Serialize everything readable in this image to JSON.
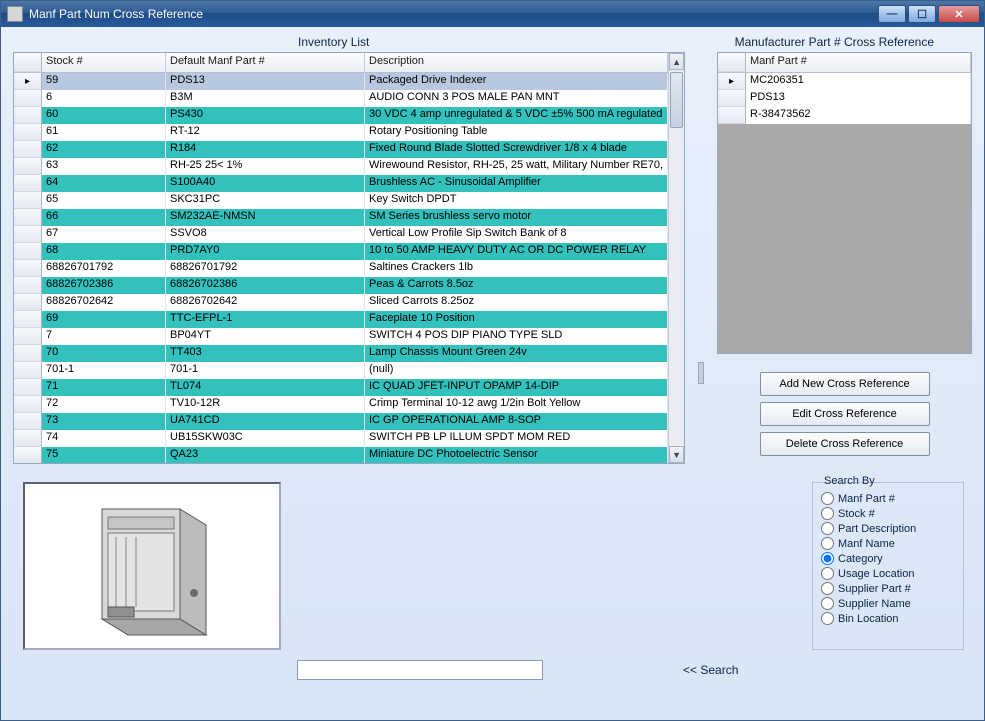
{
  "window": {
    "title": "Manf Part Num Cross Reference"
  },
  "labels": {
    "inventory_list": "Inventory List",
    "xref_title": "Manufacturer Part # Cross Reference",
    "search_label": "<< Search"
  },
  "colors": {
    "teal_row": "#32c1bd",
    "white_row": "#ffffff",
    "selected_row": "#b8c8e0",
    "header_bg_top": "#fdfdfd",
    "header_bg_bot": "#e9edf3",
    "titlebar_text": "#ffffff"
  },
  "inventory": {
    "columns": [
      "Stock #",
      "Default Manf Part #",
      "Description"
    ],
    "rows": [
      {
        "sel": true,
        "teal": false,
        "cells": [
          "59",
          "PDS13",
          "Packaged Drive Indexer"
        ]
      },
      {
        "teal": false,
        "cells": [
          "6",
          "B3M",
          "AUDIO CONN 3 POS MALE PAN MNT"
        ]
      },
      {
        "teal": true,
        "cells": [
          "60",
          "PS430",
          "30 VDC 4 amp unregulated & 5 VDC ±5% 500 mA regulated"
        ]
      },
      {
        "teal": false,
        "cells": [
          "61",
          "RT-12",
          "Rotary Positioning Table"
        ]
      },
      {
        "teal": true,
        "cells": [
          "62",
          "R184",
          "Fixed Round Blade Slotted Screwdriver 1/8 x 4 blade"
        ]
      },
      {
        "teal": false,
        "cells": [
          "63",
          "RH-25 25< 1%",
          "Wirewound Resistor, RH-25, 25 watt, Military Number RE70,"
        ]
      },
      {
        "teal": true,
        "cells": [
          "64",
          "S100A40",
          "Brushless AC - Sinusoidal Amplifier"
        ]
      },
      {
        "teal": false,
        "cells": [
          "65",
          "SKC31PC",
          "Key Switch DPDT"
        ]
      },
      {
        "teal": true,
        "cells": [
          "66",
          "SM232AE-NMSN",
          "SM Series brushless servo motor"
        ]
      },
      {
        "teal": false,
        "cells": [
          "67",
          "SSVO8",
          "Vertical Low Profile Sip Switch Bank of 8"
        ]
      },
      {
        "teal": true,
        "cells": [
          "68",
          "PRD7AY0",
          "10 to 50 AMP HEAVY DUTY AC OR DC POWER RELAY"
        ]
      },
      {
        "teal": false,
        "cells": [
          "68826701792",
          "68826701792",
          "Saltines Crackers 1lb"
        ]
      },
      {
        "teal": true,
        "cells": [
          "68826702386",
          "68826702386",
          "Peas & Carrots 8.5oz"
        ]
      },
      {
        "teal": false,
        "cells": [
          "68826702642",
          "68826702642",
          "Sliced Carrots 8.25oz"
        ]
      },
      {
        "teal": true,
        "cells": [
          "69",
          "TTC-EFPL-1",
          "Faceplate 10 Position"
        ]
      },
      {
        "teal": false,
        "cells": [
          "7",
          "BP04YT",
          "SWITCH 4 POS DIP PIANO TYPE SLD"
        ]
      },
      {
        "teal": true,
        "cells": [
          "70",
          "TT403",
          "Lamp Chassis Mount Green 24v"
        ]
      },
      {
        "teal": false,
        "cells": [
          "701-1",
          "701-1",
          "(null)"
        ]
      },
      {
        "teal": true,
        "cells": [
          "71",
          "TL074",
          "IC QUAD JFET-INPUT OPAMP 14-DIP"
        ]
      },
      {
        "teal": false,
        "cells": [
          "72",
          "TV10-12R",
          "Crimp Terminal 10-12 awg 1/2in Bolt Yellow"
        ]
      },
      {
        "teal": true,
        "cells": [
          "73",
          "UA741CD",
          "IC GP OPERATIONAL AMP 8-SOP"
        ]
      },
      {
        "teal": false,
        "cells": [
          "74",
          "UB15SKW03C",
          "SWITCH PB LP ILLUM SPDT MOM RED"
        ]
      },
      {
        "teal": true,
        "cells": [
          "75",
          "QA23",
          "Miniature DC Photoelectric Sensor"
        ]
      }
    ]
  },
  "xref": {
    "columns": [
      "Manf Part #"
    ],
    "rows": [
      {
        "sel": true,
        "cells": [
          "MC206351"
        ]
      },
      {
        "cells": [
          "PDS13"
        ]
      },
      {
        "cells": [
          "R-38473562"
        ]
      }
    ]
  },
  "buttons": {
    "add": "Add New Cross Reference",
    "edit": "Edit Cross Reference",
    "del": "Delete Cross Reference"
  },
  "search_by": {
    "legend": "Search By",
    "options": [
      {
        "label": "Manf Part #",
        "checked": false
      },
      {
        "label": "Stock #",
        "checked": false
      },
      {
        "label": "Part Description",
        "checked": false
      },
      {
        "label": "Manf Name",
        "checked": false
      },
      {
        "label": "Category",
        "checked": true
      },
      {
        "label": "Usage Location",
        "checked": false
      },
      {
        "label": "Supplier Part #",
        "checked": false
      },
      {
        "label": "Supplier Name",
        "checked": false
      },
      {
        "label": "Bin Location",
        "checked": false
      }
    ]
  },
  "search_input": {
    "value": ""
  }
}
